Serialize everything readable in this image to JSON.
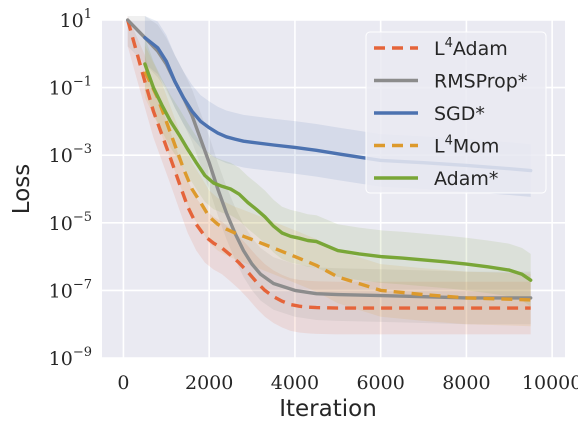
{
  "chart_data": {
    "type": "line",
    "title": "",
    "xlabel": "Iteration",
    "ylabel": "Loss",
    "xscale": "linear",
    "yscale": "log",
    "xlim": [
      -500,
      10300
    ],
    "ylim": [
      1e-09,
      10
    ],
    "grid": true,
    "legend_position": "top-right",
    "background_color": "#eaeaf2",
    "x_ticks": [
      0,
      2000,
      4000,
      6000,
      8000,
      10000
    ],
    "x_tick_labels": [
      "0",
      "2000",
      "4000",
      "6000",
      "8000",
      "10000"
    ],
    "y_ticks": [
      1e-09,
      1e-07,
      1e-05,
      0.001,
      0.1,
      10
    ],
    "y_tick_labels": [
      {
        "base": "10",
        "exp": "−9"
      },
      {
        "base": "10",
        "exp": "−7"
      },
      {
        "base": "10",
        "exp": "−5"
      },
      {
        "base": "10",
        "exp": "−3"
      },
      {
        "base": "10",
        "exp": "−1"
      },
      {
        "base": "10",
        "exp": "1"
      }
    ],
    "series": [
      {
        "key": "l4adam",
        "name_parts": {
          "base": "L",
          "sup": "4",
          "rest": "Adam"
        },
        "color": "#e5643a",
        "dashed": true,
        "x": [
          100,
          500,
          700,
          900,
          1100,
          1300,
          1500,
          1700,
          1900,
          2100,
          2300,
          2500,
          2700,
          2900,
          3100,
          3300,
          3500,
          3700,
          3900,
          4100,
          4300,
          4500,
          5000,
          6000,
          7000,
          8000,
          9000,
          9500
        ],
        "y": [
          10,
          0.15,
          0.02,
          0.004,
          0.0008,
          0.00015,
          3e-05,
          9e-06,
          4e-06,
          2.5e-06,
          1.8e-06,
          1.1e-06,
          6.5e-07,
          3.5e-07,
          1.8e-07,
          1e-07,
          6.5e-08,
          4.8e-08,
          3.8e-08,
          3.4e-08,
          3.2e-08,
          3.1e-08,
          3e-08,
          3e-08,
          3e-08,
          3e-08,
          3e-08,
          3e-08
        ]
      },
      {
        "key": "rmsprop",
        "name_parts": {
          "base": "RMSProp*",
          "sup": "",
          "rest": ""
        },
        "color": "#8c8c8c",
        "dashed": false,
        "x": [
          100,
          500,
          800,
          1000,
          1200,
          1400,
          1600,
          1800,
          2000,
          2200,
          2400,
          2600,
          2800,
          3000,
          3200,
          3500,
          4000,
          4500,
          5000,
          6000,
          7000,
          8000,
          9000,
          9500
        ],
        "y": [
          10,
          3,
          1.2,
          0.5,
          0.15,
          0.05,
          0.015,
          0.003,
          0.0006,
          0.0001,
          2e-05,
          5e-06,
          1.5e-06,
          6e-07,
          3e-07,
          1.6e-07,
          1e-07,
          8e-08,
          7.5e-08,
          7e-08,
          6.5e-08,
          6e-08,
          6e-08,
          6e-08
        ]
      },
      {
        "key": "sgd",
        "name_parts": {
          "base": "SGD*",
          "sup": "",
          "rest": ""
        },
        "color": "#4c72b0",
        "dashed": false,
        "x": [
          500,
          800,
          1000,
          1200,
          1400,
          1600,
          1800,
          2000,
          2200,
          2400,
          2600,
          2800,
          3000,
          3500,
          4000,
          4500,
          5000,
          6000,
          7000,
          8000,
          9000,
          9500
        ],
        "y": [
          3,
          1.5,
          0.6,
          0.15,
          0.05,
          0.02,
          0.01,
          0.0065,
          0.0045,
          0.0035,
          0.003,
          0.0026,
          0.0024,
          0.002,
          0.0017,
          0.0014,
          0.0011,
          0.0007,
          0.0006,
          0.0005,
          0.0004,
          0.00035
        ]
      },
      {
        "key": "l4mom",
        "name_parts": {
          "base": "L",
          "sup": "4",
          "rest": "Mom"
        },
        "color": "#dd9a2c",
        "dashed": true,
        "x": [
          500,
          800,
          1000,
          1200,
          1400,
          1600,
          1800,
          2000,
          2200,
          2400,
          2600,
          2800,
          3000,
          3500,
          4000,
          4500,
          5000,
          6000,
          7000,
          8000,
          9000,
          9500
        ],
        "y": [
          0.3,
          0.05,
          0.01,
          0.002,
          0.0004,
          0.0001,
          4e-05,
          1.5e-05,
          9e-06,
          6.5e-06,
          5e-06,
          4e-06,
          3.2e-06,
          1.8e-06,
          1e-06,
          5.5e-07,
          2.5e-07,
          1e-07,
          7.5e-08,
          6e-08,
          5.5e-08,
          5.2e-08
        ]
      },
      {
        "key": "adam",
        "name_parts": {
          "base": "Adam*",
          "sup": "",
          "rest": ""
        },
        "color": "#79a637",
        "dashed": false,
        "x": [
          500,
          700,
          900,
          1100,
          1300,
          1500,
          1700,
          1900,
          2100,
          2300,
          2500,
          2700,
          2900,
          3100,
          3300,
          3500,
          3700,
          3900,
          4100,
          4300,
          4500,
          5000,
          5500,
          6000,
          6500,
          7000,
          7500,
          8000,
          8500,
          9000,
          9300,
          9500
        ],
        "y": [
          0.5,
          0.1,
          0.03,
          0.01,
          0.004,
          0.0015,
          0.0006,
          0.00025,
          0.00015,
          0.00012,
          0.0001,
          7e-05,
          4e-05,
          2.5e-05,
          1.5e-05,
          8e-06,
          5e-06,
          4e-06,
          3.5e-06,
          3e-06,
          2.8e-06,
          1.5e-06,
          1.2e-06,
          1e-06,
          9e-07,
          8e-07,
          7e-07,
          6e-07,
          5e-07,
          4e-07,
          3e-07,
          2e-07
        ]
      }
    ]
  }
}
